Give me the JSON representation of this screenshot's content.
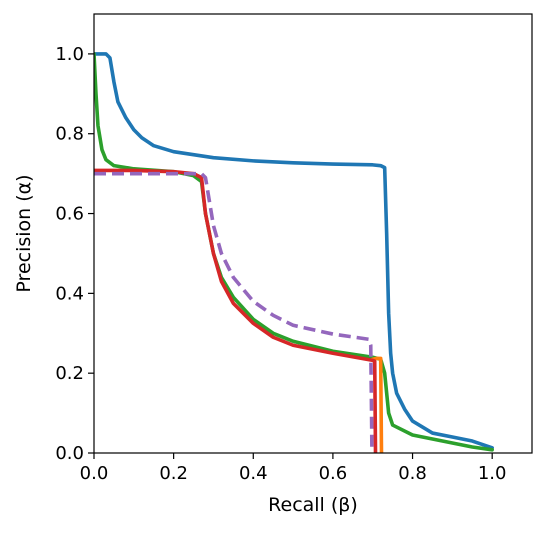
{
  "chart_data": {
    "type": "line",
    "title": "",
    "xlabel": "Recall (β)",
    "ylabel": "Precision (α)",
    "xlim": [
      0,
      1.1
    ],
    "ylim": [
      0,
      1.1
    ],
    "xticks": [
      "0.0",
      "0.2",
      "0.4",
      "0.6",
      "0.8",
      "1.0"
    ],
    "yticks": [
      "0.0",
      "0.2",
      "0.4",
      "0.6",
      "0.8",
      "1.0"
    ],
    "grid": false,
    "legend": "none",
    "series": [
      {
        "color": "#1f77b4",
        "dash": false,
        "points": [
          [
            0,
            1.0
          ],
          [
            0.03,
            1.0
          ],
          [
            0.04,
            0.99
          ],
          [
            0.05,
            0.93
          ],
          [
            0.06,
            0.88
          ],
          [
            0.08,
            0.84
          ],
          [
            0.1,
            0.81
          ],
          [
            0.12,
            0.79
          ],
          [
            0.15,
            0.77
          ],
          [
            0.2,
            0.755
          ],
          [
            0.3,
            0.74
          ],
          [
            0.4,
            0.732
          ],
          [
            0.5,
            0.727
          ],
          [
            0.6,
            0.724
          ],
          [
            0.7,
            0.722
          ],
          [
            0.72,
            0.72
          ],
          [
            0.73,
            0.715
          ],
          [
            0.735,
            0.55
          ],
          [
            0.74,
            0.35
          ],
          [
            0.745,
            0.25
          ],
          [
            0.75,
            0.2
          ],
          [
            0.76,
            0.15
          ],
          [
            0.78,
            0.11
          ],
          [
            0.8,
            0.08
          ],
          [
            0.85,
            0.05
          ],
          [
            0.9,
            0.04
          ],
          [
            0.95,
            0.03
          ],
          [
            1.0,
            0.013
          ]
        ]
      },
      {
        "color": "#2ca02c",
        "dash": false,
        "points": [
          [
            0,
            1.0
          ],
          [
            0.005,
            0.9
          ],
          [
            0.01,
            0.82
          ],
          [
            0.02,
            0.76
          ],
          [
            0.03,
            0.735
          ],
          [
            0.05,
            0.72
          ],
          [
            0.1,
            0.712
          ],
          [
            0.2,
            0.705
          ],
          [
            0.25,
            0.695
          ],
          [
            0.27,
            0.68
          ],
          [
            0.28,
            0.6
          ],
          [
            0.3,
            0.5
          ],
          [
            0.32,
            0.44
          ],
          [
            0.35,
            0.39
          ],
          [
            0.4,
            0.335
          ],
          [
            0.45,
            0.3
          ],
          [
            0.5,
            0.28
          ],
          [
            0.6,
            0.255
          ],
          [
            0.7,
            0.24
          ],
          [
            0.72,
            0.235
          ],
          [
            0.73,
            0.2
          ],
          [
            0.74,
            0.1
          ],
          [
            0.75,
            0.07
          ],
          [
            0.8,
            0.045
          ],
          [
            0.85,
            0.035
          ],
          [
            0.9,
            0.025
          ],
          [
            0.95,
            0.015
          ],
          [
            1.0,
            0.008
          ]
        ]
      },
      {
        "color": "#ff7f0e",
        "dash": false,
        "points": [
          [
            0.7,
            0.235
          ],
          [
            0.71,
            0.237
          ],
          [
            0.72,
            0.237
          ],
          [
            0.722,
            0.0
          ]
        ]
      },
      {
        "color": "#d62728",
        "dash": false,
        "points": [
          [
            0,
            0.708
          ],
          [
            0.1,
            0.708
          ],
          [
            0.2,
            0.705
          ],
          [
            0.25,
            0.7
          ],
          [
            0.27,
            0.69
          ],
          [
            0.28,
            0.6
          ],
          [
            0.3,
            0.5
          ],
          [
            0.32,
            0.43
          ],
          [
            0.35,
            0.375
          ],
          [
            0.4,
            0.325
          ],
          [
            0.45,
            0.29
          ],
          [
            0.5,
            0.27
          ],
          [
            0.6,
            0.25
          ],
          [
            0.7,
            0.232
          ],
          [
            0.705,
            0.23
          ],
          [
            0.707,
            0.0
          ]
        ]
      },
      {
        "color": "#9467bd",
        "dash": true,
        "points": [
          [
            0,
            0.7
          ],
          [
            0.1,
            0.7
          ],
          [
            0.2,
            0.7
          ],
          [
            0.27,
            0.7
          ],
          [
            0.28,
            0.69
          ],
          [
            0.29,
            0.63
          ],
          [
            0.3,
            0.57
          ],
          [
            0.32,
            0.5
          ],
          [
            0.35,
            0.44
          ],
          [
            0.4,
            0.38
          ],
          [
            0.45,
            0.345
          ],
          [
            0.5,
            0.32
          ],
          [
            0.6,
            0.298
          ],
          [
            0.69,
            0.285
          ],
          [
            0.695,
            0.27
          ],
          [
            0.697,
            0.1
          ],
          [
            0.698,
            0.0
          ]
        ]
      }
    ]
  }
}
